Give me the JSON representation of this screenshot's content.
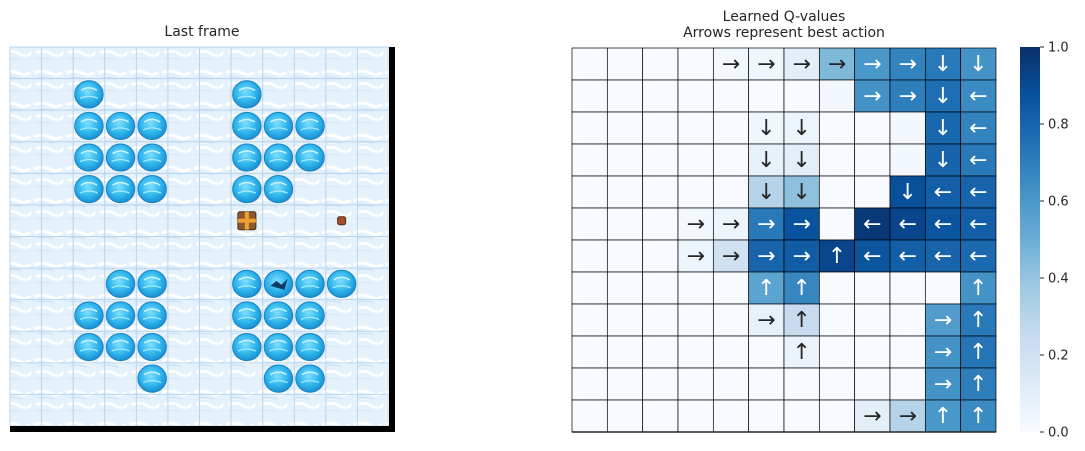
{
  "chart_data": [
    {
      "type": "grid-image",
      "title": "Last frame",
      "rows": 12,
      "cols": 12,
      "holes": [
        [
          1,
          2
        ],
        [
          1,
          7
        ],
        [
          2,
          2
        ],
        [
          2,
          3
        ],
        [
          2,
          4
        ],
        [
          2,
          7
        ],
        [
          2,
          8
        ],
        [
          2,
          9
        ],
        [
          3,
          2
        ],
        [
          3,
          3
        ],
        [
          3,
          4
        ],
        [
          3,
          7
        ],
        [
          3,
          8
        ],
        [
          3,
          9
        ],
        [
          4,
          2
        ],
        [
          4,
          3
        ],
        [
          4,
          4
        ],
        [
          4,
          7
        ],
        [
          4,
          8
        ],
        [
          7,
          3
        ],
        [
          7,
          4
        ],
        [
          7,
          7
        ],
        [
          7,
          9
        ],
        [
          7,
          10
        ],
        [
          8,
          2
        ],
        [
          8,
          3
        ],
        [
          8,
          4
        ],
        [
          8,
          7
        ],
        [
          8,
          8
        ],
        [
          8,
          9
        ],
        [
          9,
          2
        ],
        [
          9,
          3
        ],
        [
          9,
          4
        ],
        [
          9,
          7
        ],
        [
          9,
          8
        ],
        [
          9,
          9
        ],
        [
          10,
          4
        ],
        [
          10,
          8
        ],
        [
          10,
          9
        ]
      ],
      "cracked_hole": [
        7,
        8
      ],
      "goal": [
        5,
        7
      ],
      "agent": [
        5,
        10
      ]
    },
    {
      "type": "heatmap",
      "title_line1": "Learned Q-values",
      "title_line2": "Arrows represent best action",
      "rows": 12,
      "cols": 12,
      "values": [
        [
          0,
          0,
          0,
          0,
          0.02,
          0.04,
          0.1,
          0.45,
          0.6,
          0.68,
          0.72,
          0.62
        ],
        [
          0,
          0,
          0,
          0,
          0,
          0,
          0,
          0.02,
          0.62,
          0.7,
          0.76,
          0.65
        ],
        [
          0,
          0,
          0,
          0,
          0,
          0.04,
          0.05,
          0,
          0,
          0.02,
          0.79,
          0.68
        ],
        [
          0,
          0,
          0,
          0,
          0,
          0.08,
          0.1,
          0,
          0,
          0.02,
          0.8,
          0.72
        ],
        [
          0,
          0,
          0,
          0,
          0,
          0.3,
          0.42,
          0,
          0,
          0.88,
          0.82,
          0.8
        ],
        [
          0,
          0,
          0,
          0.02,
          0.05,
          0.72,
          0.87,
          0,
          0.97,
          0.92,
          0.86,
          0.82
        ],
        [
          0,
          0,
          0,
          0.05,
          0.2,
          0.8,
          0.83,
          0.92,
          0.86,
          0.82,
          0.8,
          0.78
        ],
        [
          0,
          0,
          0,
          0,
          0,
          0.55,
          0.67,
          0,
          0,
          0,
          0,
          0.62
        ],
        [
          0,
          0,
          0,
          0,
          0,
          0.08,
          0.24,
          0,
          0,
          0,
          0.58,
          0.72
        ],
        [
          0,
          0,
          0,
          0,
          0,
          0,
          0.06,
          0,
          0,
          0,
          0.62,
          0.74
        ],
        [
          0,
          0,
          0,
          0,
          0,
          0,
          0,
          0,
          0,
          0,
          0.62,
          0.7
        ],
        [
          0,
          0,
          0,
          0,
          0,
          0,
          0,
          0,
          0.1,
          0.3,
          0.6,
          0.65
        ]
      ],
      "arrows": [
        [
          "",
          "",
          "",
          "",
          "→",
          "→",
          "→",
          "→",
          "→",
          "→",
          "↓",
          "↓"
        ],
        [
          "",
          "",
          "",
          "",
          "",
          "",
          "",
          "",
          "→",
          "→",
          "↓",
          "←"
        ],
        [
          "",
          "",
          "",
          "",
          "",
          "↓",
          "↓",
          "",
          "",
          "",
          "↓",
          "←"
        ],
        [
          "",
          "",
          "",
          "",
          "",
          "↓",
          "↓",
          "",
          "",
          "",
          "↓",
          "←"
        ],
        [
          "",
          "",
          "",
          "",
          "",
          "↓",
          "↓",
          "",
          "",
          "↓",
          "←",
          "←"
        ],
        [
          "",
          "",
          "",
          "→",
          "→",
          "→",
          "→",
          "",
          "←",
          "←",
          "←",
          "←"
        ],
        [
          "",
          "",
          "",
          "→",
          "→",
          "→",
          "→",
          "↑",
          "←",
          "←",
          "←",
          "←"
        ],
        [
          "",
          "",
          "",
          "",
          "",
          "↑",
          "↑",
          "",
          "",
          "",
          "",
          "↑"
        ],
        [
          "",
          "",
          "",
          "",
          "",
          "→",
          "↑",
          "",
          "",
          "",
          "→",
          "↑"
        ],
        [
          "",
          "",
          "",
          "",
          "",
          "",
          "↑",
          "",
          "",
          "",
          "→",
          "↑"
        ],
        [
          "",
          "",
          "",
          "",
          "",
          "",
          "",
          "",
          "",
          "",
          "→",
          "↑"
        ],
        [
          "",
          "",
          "",
          "",
          "",
          "",
          "",
          "",
          "→",
          "→",
          "↑",
          "↑"
        ]
      ],
      "colorbar": {
        "ticks": [
          "0.0",
          "0.2",
          "0.4",
          "0.6",
          "0.8",
          "1.0"
        ],
        "vmin": 0,
        "vmax": 1
      },
      "colors": {
        "low": "#f7fbff",
        "high": "#08306b"
      }
    }
  ]
}
